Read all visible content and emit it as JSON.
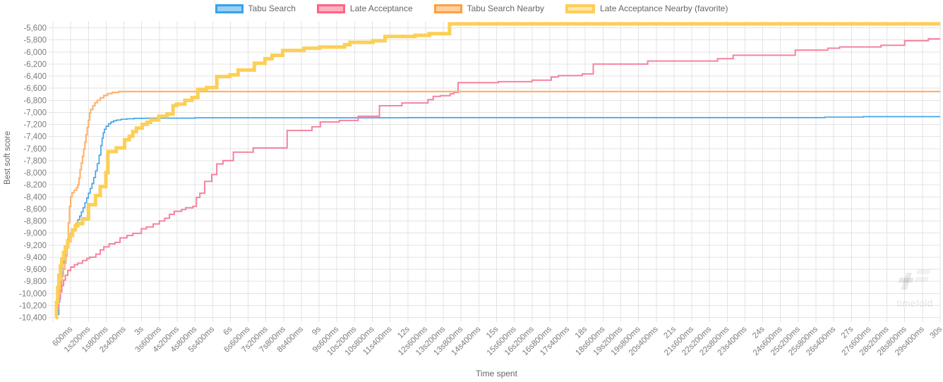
{
  "legend": {
    "items": [
      {
        "label": "Tabu Search",
        "fill": "#9ad0f5",
        "border": "#36a2eb",
        "border_width": 3
      },
      {
        "label": "Late Acceptance",
        "fill": "#ffb1c1",
        "border": "#ff6384",
        "border_width": 3
      },
      {
        "label": "Tabu Search Nearby",
        "fill": "#ffcf9f",
        "border": "#ff9f40",
        "border_width": 3
      },
      {
        "label": "Late Acceptance Nearby (favorite)",
        "fill": "#ffe6aa",
        "border": "#ffcd56",
        "border_width": 4
      }
    ]
  },
  "axes": {
    "x_title": "Time spent",
    "y_title": "Best soft score",
    "x_tick_labels": [
      "600ms",
      "1s200ms",
      "1s800ms",
      "2s400ms",
      "3s",
      "3s600ms",
      "4s200ms",
      "4s800ms",
      "5s400ms",
      "6s",
      "6s600ms",
      "7s200ms",
      "7s800ms",
      "8s400ms",
      "9s",
      "9s600ms",
      "10s200ms",
      "10s800ms",
      "11s400ms",
      "12s",
      "12s600ms",
      "13s200ms",
      "13s800ms",
      "14s400ms",
      "15s",
      "15s600ms",
      "16s200ms",
      "16s800ms",
      "17s400ms",
      "18s",
      "18s600ms",
      "19s200ms",
      "19s800ms",
      "20s400ms",
      "21s",
      "21s600ms",
      "22s200ms",
      "22s800ms",
      "23s400ms",
      "24s",
      "24s600ms",
      "25s200ms",
      "25s800ms",
      "26s400ms",
      "27s",
      "27s600ms",
      "28s200ms",
      "28s800ms",
      "29s400ms",
      "30s"
    ],
    "y_tick_labels": [
      "-5,600",
      "-5,800",
      "-6,000",
      "-6,200",
      "-6,400",
      "-6,600",
      "-6,800",
      "-7,000",
      "-7,200",
      "-7,400",
      "-7,600",
      "-7,800",
      "-8,000",
      "-8,200",
      "-8,400",
      "-8,600",
      "-8,800",
      "-9,000",
      "-9,200",
      "-9,400",
      "-9,600",
      "-9,800",
      "-10,000",
      "-10,200",
      "-10,400"
    ]
  },
  "watermark": {
    "text": "timefold"
  },
  "chart_data": {
    "type": "line",
    "step": true,
    "title": "",
    "xlabel": "Time spent",
    "ylabel": "Best soft score",
    "x_unit": "milliseconds",
    "xlim_ms": [
      0,
      30000
    ],
    "ylim": [
      -10400,
      -5600
    ],
    "x_tick_step_ms": 600,
    "y_tick_step": 200,
    "grid": true,
    "legend_position": "top",
    "series": [
      {
        "name": "Tabu Search",
        "color": "#45a4e9",
        "line_width": 1.7,
        "points": [
          [
            170,
            -10350
          ],
          [
            200,
            -10150
          ],
          [
            230,
            -9950
          ],
          [
            260,
            -9800
          ],
          [
            300,
            -9650
          ],
          [
            340,
            -9500
          ],
          [
            380,
            -9380
          ],
          [
            420,
            -9280
          ],
          [
            460,
            -9180
          ],
          [
            500,
            -9100
          ],
          [
            550,
            -9040
          ],
          [
            600,
            -9000
          ],
          [
            660,
            -8950
          ],
          [
            720,
            -8900
          ],
          [
            780,
            -8840
          ],
          [
            840,
            -8780
          ],
          [
            900,
            -8720
          ],
          [
            960,
            -8650
          ],
          [
            1020,
            -8580
          ],
          [
            1080,
            -8500
          ],
          [
            1140,
            -8420
          ],
          [
            1200,
            -8340
          ],
          [
            1260,
            -8260
          ],
          [
            1320,
            -8180
          ],
          [
            1380,
            -8080
          ],
          [
            1440,
            -7970
          ],
          [
            1500,
            -7850
          ],
          [
            1560,
            -7710
          ],
          [
            1620,
            -7550
          ],
          [
            1660,
            -7430
          ],
          [
            1700,
            -7340
          ],
          [
            1740,
            -7280
          ],
          [
            1800,
            -7230
          ],
          [
            1880,
            -7190
          ],
          [
            1960,
            -7160
          ],
          [
            2050,
            -7140
          ],
          [
            2150,
            -7128
          ],
          [
            2300,
            -7115
          ],
          [
            2500,
            -7106
          ],
          [
            2750,
            -7100
          ],
          [
            3200,
            -7096
          ],
          [
            4800,
            -7090
          ],
          [
            12000,
            -7088
          ],
          [
            26100,
            -7080
          ],
          [
            27400,
            -7072
          ],
          [
            30000,
            -7072
          ]
        ]
      },
      {
        "name": "Late Acceptance",
        "color": "#f5839f",
        "line_width": 2,
        "points": [
          [
            100,
            -10400
          ],
          [
            150,
            -10250
          ],
          [
            200,
            -10100
          ],
          [
            250,
            -9980
          ],
          [
            300,
            -9870
          ],
          [
            360,
            -9780
          ],
          [
            420,
            -9700
          ],
          [
            500,
            -9620
          ],
          [
            600,
            -9565
          ],
          [
            720,
            -9525
          ],
          [
            840,
            -9500
          ],
          [
            1000,
            -9455
          ],
          [
            1150,
            -9420
          ],
          [
            1240,
            -9400
          ],
          [
            1450,
            -9350
          ],
          [
            1600,
            -9280
          ],
          [
            1720,
            -9230
          ],
          [
            1900,
            -9180
          ],
          [
            2100,
            -9155
          ],
          [
            2270,
            -9080
          ],
          [
            2500,
            -9040
          ],
          [
            2700,
            -9005
          ],
          [
            2990,
            -8930
          ],
          [
            3160,
            -8900
          ],
          [
            3390,
            -8850
          ],
          [
            3600,
            -8800
          ],
          [
            3780,
            -8755
          ],
          [
            3940,
            -8690
          ],
          [
            4100,
            -8640
          ],
          [
            4350,
            -8610
          ],
          [
            4490,
            -8580
          ],
          [
            4730,
            -8560
          ],
          [
            4850,
            -8410
          ],
          [
            4970,
            -8340
          ],
          [
            5130,
            -8145
          ],
          [
            5370,
            -8030
          ],
          [
            5540,
            -7855
          ],
          [
            5750,
            -7800
          ],
          [
            6100,
            -7660
          ],
          [
            6770,
            -7590
          ],
          [
            7920,
            -7300
          ],
          [
            8760,
            -7240
          ],
          [
            9040,
            -7160
          ],
          [
            9680,
            -7135
          ],
          [
            10320,
            -7065
          ],
          [
            11040,
            -6890
          ],
          [
            11800,
            -6845
          ],
          [
            12680,
            -6790
          ],
          [
            12860,
            -6736
          ],
          [
            13100,
            -6724
          ],
          [
            13430,
            -6693
          ],
          [
            13550,
            -6670
          ],
          [
            13700,
            -6507
          ],
          [
            15060,
            -6492
          ],
          [
            16200,
            -6468
          ],
          [
            16850,
            -6414
          ],
          [
            17090,
            -6391
          ],
          [
            17900,
            -6364
          ],
          [
            18270,
            -6200
          ],
          [
            20110,
            -6150
          ],
          [
            22470,
            -6112
          ],
          [
            23000,
            -6054
          ],
          [
            25100,
            -5969
          ],
          [
            26200,
            -5937
          ],
          [
            26600,
            -5917
          ],
          [
            28000,
            -5890
          ],
          [
            28800,
            -5813
          ],
          [
            29600,
            -5782
          ],
          [
            30000,
            -5782
          ]
        ]
      },
      {
        "name": "Tabu Search Nearby",
        "color": "#ffb270",
        "line_width": 2.2,
        "points": [
          [
            100,
            -10320
          ],
          [
            150,
            -10150
          ],
          [
            200,
            -10000
          ],
          [
            250,
            -9850
          ],
          [
            300,
            -9720
          ],
          [
            350,
            -9600
          ],
          [
            400,
            -9500
          ],
          [
            440,
            -9380
          ],
          [
            480,
            -9150
          ],
          [
            520,
            -8830
          ],
          [
            560,
            -8560
          ],
          [
            600,
            -8400
          ],
          [
            650,
            -8330
          ],
          [
            720,
            -8290
          ],
          [
            800,
            -8250
          ],
          [
            840,
            -8200
          ],
          [
            880,
            -8090
          ],
          [
            920,
            -7950
          ],
          [
            960,
            -7840
          ],
          [
            1000,
            -7730
          ],
          [
            1040,
            -7610
          ],
          [
            1080,
            -7490
          ],
          [
            1120,
            -7370
          ],
          [
            1160,
            -7250
          ],
          [
            1200,
            -7130
          ],
          [
            1240,
            -7010
          ],
          [
            1280,
            -6950
          ],
          [
            1350,
            -6890
          ],
          [
            1420,
            -6840
          ],
          [
            1500,
            -6800
          ],
          [
            1600,
            -6760
          ],
          [
            1720,
            -6720
          ],
          [
            1850,
            -6690
          ],
          [
            2000,
            -6670
          ],
          [
            2220,
            -6656
          ],
          [
            30000,
            -6656
          ]
        ]
      },
      {
        "name": "Late Acceptance Nearby (favorite)",
        "color": "#fccf57",
        "line_width": 5,
        "points": [
          [
            80,
            -10400
          ],
          [
            120,
            -10150
          ],
          [
            160,
            -9900
          ],
          [
            200,
            -9700
          ],
          [
            250,
            -9550
          ],
          [
            300,
            -9430
          ],
          [
            360,
            -9320
          ],
          [
            420,
            -9230
          ],
          [
            500,
            -9130
          ],
          [
            580,
            -9040
          ],
          [
            660,
            -8950
          ],
          [
            760,
            -8880
          ],
          [
            840,
            -8845
          ],
          [
            1000,
            -8765
          ],
          [
            1200,
            -8530
          ],
          [
            1440,
            -8380
          ],
          [
            1600,
            -8230
          ],
          [
            1790,
            -8000
          ],
          [
            1860,
            -7650
          ],
          [
            2140,
            -7590
          ],
          [
            2420,
            -7455
          ],
          [
            2580,
            -7395
          ],
          [
            2700,
            -7320
          ],
          [
            2820,
            -7260
          ],
          [
            3020,
            -7200
          ],
          [
            3180,
            -7165
          ],
          [
            3300,
            -7125
          ],
          [
            3580,
            -7065
          ],
          [
            3860,
            -7028
          ],
          [
            4060,
            -6890
          ],
          [
            4180,
            -6864
          ],
          [
            4460,
            -6802
          ],
          [
            4700,
            -6755
          ],
          [
            4900,
            -6620
          ],
          [
            5190,
            -6590
          ],
          [
            5540,
            -6407
          ],
          [
            5980,
            -6380
          ],
          [
            6260,
            -6300
          ],
          [
            6810,
            -6186
          ],
          [
            7170,
            -6112
          ],
          [
            7410,
            -6055
          ],
          [
            7770,
            -5975
          ],
          [
            8490,
            -5937
          ],
          [
            9020,
            -5918
          ],
          [
            9860,
            -5880
          ],
          [
            10040,
            -5841
          ],
          [
            10820,
            -5813
          ],
          [
            11230,
            -5744
          ],
          [
            12240,
            -5724
          ],
          [
            12720,
            -5697
          ],
          [
            13410,
            -5535
          ],
          [
            30000,
            -5535
          ]
        ]
      }
    ]
  }
}
